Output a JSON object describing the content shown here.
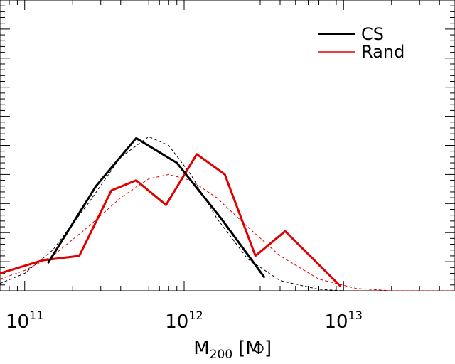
{
  "chart_data": {
    "type": "line",
    "xlabel": "M",
    "xlabel_sub": "200",
    "xlabel_unit_open": "[M",
    "xlabel_unit_close": "]",
    "xscale": "log",
    "xlim": [
      70000000000,
      50000000000000
    ],
    "ylim": [
      0,
      1
    ],
    "x_tick_labels": [
      {
        "value": 100000000000,
        "base": "10",
        "exp": "11"
      },
      {
        "value": 1000000000000,
        "base": "10",
        "exp": "12"
      },
      {
        "value": 10000000000000,
        "base": "10",
        "exp": "13"
      }
    ],
    "legend": {
      "placement": "top-right",
      "entries": [
        {
          "name": "CS",
          "color": "#000000"
        },
        {
          "name": "Rand",
          "color": "#e00000"
        }
      ]
    },
    "series": [
      {
        "name": "CS",
        "color": "#000000",
        "style": "solid",
        "x": [
          140000000000,
          280000000000,
          500000000000,
          900000000000,
          1700000000000,
          3200000000000
        ],
        "y": [
          0.095,
          0.36,
          0.525,
          0.44,
          0.25,
          0.045
        ]
      },
      {
        "name": "Rand",
        "color": "#e00000",
        "style": "solid",
        "x": [
          70000000000,
          130000000000,
          220000000000,
          350000000000,
          500000000000,
          770000000000,
          1200000000000,
          1800000000000,
          2800000000000,
          4300000000000,
          9600000000000
        ],
        "y": [
          0.06,
          0.105,
          0.12,
          0.345,
          0.38,
          0.295,
          0.47,
          0.4,
          0.12,
          0.205,
          0.015
        ]
      },
      {
        "name": "",
        "color": "#000000",
        "style": "dashed",
        "fit": "gaussian",
        "x": [
          70000000000,
          100000000000,
          150000000000,
          250000000000,
          400000000000,
          600000000000,
          800000000000,
          1100000000000,
          1600000000000,
          2500000000000,
          4000000000000,
          7000000000000,
          10000000000000
        ],
        "y": [
          0.025,
          0.06,
          0.14,
          0.3,
          0.46,
          0.53,
          0.5,
          0.4,
          0.25,
          0.11,
          0.035,
          0.005,
          0.0
        ]
      },
      {
        "name": "",
        "color": "#e00000",
        "style": "dashed",
        "fit": "gaussian",
        "x": [
          70000000000,
          100000000000,
          150000000000,
          250000000000,
          400000000000,
          600000000000,
          800000000000,
          1100000000000,
          1600000000000,
          2500000000000,
          4000000000000,
          7000000000000,
          12000000000000,
          20000000000000,
          50000000000000
        ],
        "y": [
          0.04,
          0.07,
          0.12,
          0.22,
          0.32,
          0.385,
          0.4,
          0.38,
          0.32,
          0.22,
          0.12,
          0.04,
          0.008,
          0.0,
          0.0
        ]
      }
    ]
  }
}
